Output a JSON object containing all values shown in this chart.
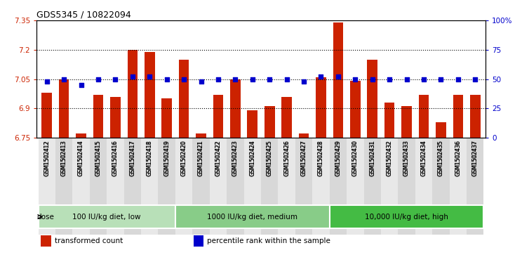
{
  "title": "GDS5345 / 10822094",
  "samples": [
    "GSM1502412",
    "GSM1502413",
    "GSM1502414",
    "GSM1502415",
    "GSM1502416",
    "GSM1502417",
    "GSM1502418",
    "GSM1502419",
    "GSM1502420",
    "GSM1502421",
    "GSM1502422",
    "GSM1502423",
    "GSM1502424",
    "GSM1502425",
    "GSM1502426",
    "GSM1502427",
    "GSM1502428",
    "GSM1502429",
    "GSM1502430",
    "GSM1502431",
    "GSM1502432",
    "GSM1502433",
    "GSM1502434",
    "GSM1502435",
    "GSM1502436",
    "GSM1502437"
  ],
  "bar_values": [
    6.98,
    7.05,
    6.77,
    6.97,
    6.96,
    7.2,
    7.19,
    6.95,
    7.15,
    6.77,
    6.97,
    7.05,
    6.89,
    6.91,
    6.96,
    6.77,
    7.06,
    7.34,
    7.04,
    7.15,
    6.93,
    6.91,
    6.97,
    6.83,
    6.97,
    6.97
  ],
  "dot_values": [
    48,
    50,
    45,
    50,
    50,
    52,
    52,
    50,
    50,
    48,
    50,
    50,
    50,
    50,
    50,
    48,
    52,
    52,
    50,
    50,
    50,
    50,
    50,
    50,
    50,
    50
  ],
  "bar_color": "#CC2200",
  "dot_color": "#0000CC",
  "ylim_left": [
    6.75,
    7.35
  ],
  "ylim_right": [
    0,
    100
  ],
  "yticks_left": [
    6.75,
    6.9,
    7.05,
    7.2,
    7.35
  ],
  "ytick_labels_left": [
    "6.75",
    "6.9",
    "7.05",
    "7.2",
    "7.35"
  ],
  "yticks_right": [
    0,
    25,
    50,
    75,
    100
  ],
  "ytick_labels_right": [
    "0",
    "25",
    "50",
    "75",
    "100%"
  ],
  "hlines": [
    6.9,
    7.05,
    7.2
  ],
  "groups": [
    {
      "label": "100 IU/kg diet, low",
      "start": 0,
      "end": 8,
      "color": "#b8e0b8"
    },
    {
      "label": "1000 IU/kg diet, medium",
      "start": 8,
      "end": 17,
      "color": "#88cc88"
    },
    {
      "label": "10,000 IU/kg diet, high",
      "start": 17,
      "end": 26,
      "color": "#44bb44"
    }
  ],
  "legend_items": [
    {
      "label": "transformed count",
      "color": "#CC2200"
    },
    {
      "label": "percentile rank within the sample",
      "color": "#0000CC"
    }
  ],
  "dose_label": "dose",
  "plot_bg": "#ffffff"
}
